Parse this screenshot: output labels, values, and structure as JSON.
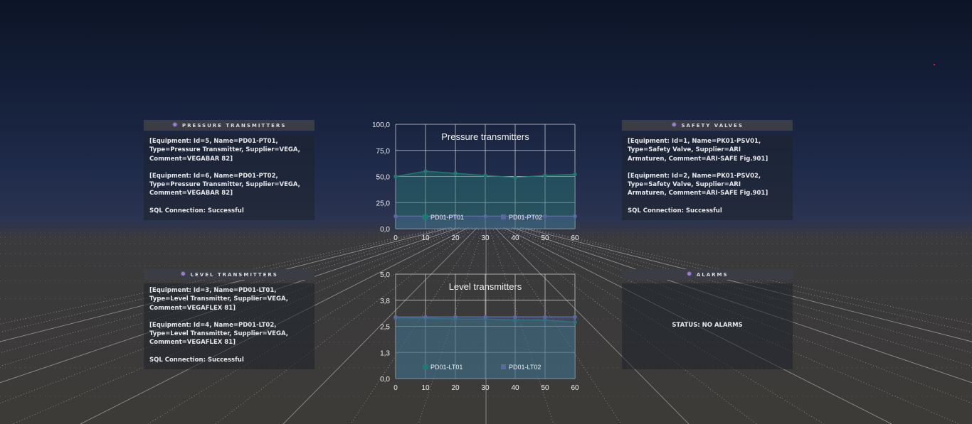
{
  "panels": {
    "pressure": {
      "title": "PRESSURE TRANSMITTERS",
      "icon": "gear-icon",
      "entries": [
        "[Equipment: Id=5, Name=PD01-PT01,\nType=Pressure Transmitter, Supplier=VEGA,\nComment=VEGABAR 82]",
        "[Equipment: Id=6, Name=PD01-PT02,\nType=Pressure Transmitter, Supplier=VEGA,\nComment=VEGABAR 82]"
      ],
      "sql_status": "SQL Connection: Successful"
    },
    "safety": {
      "title": "SAFETY VALVES",
      "icon": "gear-icon",
      "entries": [
        "[Equipment: Id=1, Name=PK01-PSV01,\nType=Safety Valve, Supplier=ARI\nArmaturen, Comment=ARI-SAFE Fig.901]",
        "[Equipment: Id=2, Name=PK01-PSV02,\nType=Safety Valve, Supplier=ARI\nArmaturen, Comment=ARI-SAFE Fig.901]"
      ],
      "sql_status": "SQL Connection: Successful"
    },
    "level": {
      "title": "LEVEL TRANSMITTERS",
      "icon": "gear-icon",
      "entries": [
        "[Equipment: Id=3, Name=PD01-LT01,\nType=Level Transmitter, Supplier=VEGA,\nComment=VEGAFLEX 81]",
        "[Equipment: Id=4, Name=PD01-LT02,\nType=Level Transmitter, Supplier=VEGA,\nComment=VEGAFLEX 81]"
      ],
      "sql_status": "SQL Connection: Successful"
    },
    "alarms": {
      "title": "ALARMS",
      "icon": "gear-icon",
      "status": "STATUS: NO ALARMS"
    }
  },
  "colors": {
    "series_teal": "#1f7a72",
    "series_blue": "#5a6a9a"
  },
  "chart_data": [
    {
      "type": "area",
      "title": "Pressure transmitters",
      "x": [
        0,
        10,
        20,
        30,
        40,
        50,
        60
      ],
      "ylim": [
        0,
        100
      ],
      "yticks": [
        "0,0",
        "25,0",
        "50,0",
        "75,0",
        "100,0"
      ],
      "xticks": [
        "0",
        "10",
        "20",
        "30",
        "40",
        "50",
        "60"
      ],
      "grid": true,
      "legend": "inside-bottom",
      "series": [
        {
          "name": "PD01-PT01",
          "values": [
            50,
            55,
            53,
            51,
            49,
            51,
            52
          ]
        },
        {
          "name": "PD01-PT02",
          "values": [
            12,
            12,
            12,
            12,
            12,
            12,
            12
          ]
        }
      ]
    },
    {
      "type": "area",
      "title": "Level transmitters",
      "x": [
        0,
        10,
        20,
        30,
        40,
        50,
        60
      ],
      "ylim": [
        0,
        5
      ],
      "yticks": [
        "0,0",
        "1,3",
        "2,5",
        "3,8",
        "5,0"
      ],
      "xticks": [
        "0",
        "10",
        "20",
        "30",
        "40",
        "50",
        "60"
      ],
      "grid": true,
      "legend": "inside-bottom",
      "series": [
        {
          "name": "PD01-LT01",
          "values": [
            2.9,
            2.9,
            2.85,
            2.85,
            2.8,
            2.8,
            2.7
          ]
        },
        {
          "name": "PD01-LT02",
          "values": [
            2.95,
            2.95,
            2.95,
            2.95,
            2.95,
            2.95,
            2.95
          ]
        }
      ]
    }
  ]
}
